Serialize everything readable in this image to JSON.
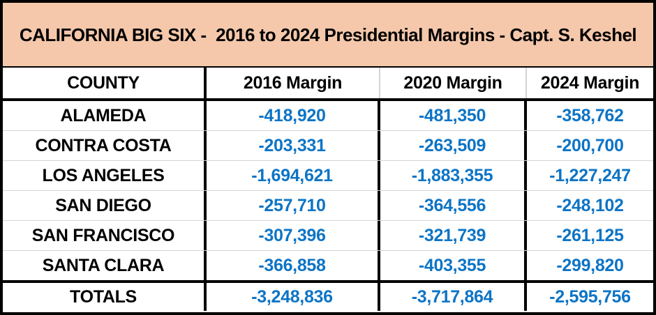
{
  "title": "CALIFORNIA BIG SIX -  2016 to 2024 Presidential Margins - Capt. S. Keshel",
  "colors": {
    "title_background": "#F5C8AB",
    "value_blue": "#0D74C5",
    "grid_gray": "#D4D4D4",
    "border_black": "#000000"
  },
  "table": {
    "headers": [
      "COUNTY",
      "2016 Margin",
      "2020 Margin",
      "2024 Margin"
    ],
    "rows": [
      {
        "county": "ALAMEDA",
        "m2016": "-418,920",
        "m2020": "-481,350",
        "m2024": "-358,762"
      },
      {
        "county": "CONTRA COSTA",
        "m2016": "-203,331",
        "m2020": "-263,509",
        "m2024": "-200,700"
      },
      {
        "county": "LOS ANGELES",
        "m2016": "-1,694,621",
        "m2020": "-1,883,355",
        "m2024": "-1,227,247"
      },
      {
        "county": "SAN DIEGO",
        "m2016": "-257,710",
        "m2020": "-364,556",
        "m2024": "-248,102"
      },
      {
        "county": "SAN FRANCISCO",
        "m2016": "-307,396",
        "m2020": "-321,739",
        "m2024": "-261,125"
      },
      {
        "county": "SANTA CLARA",
        "m2016": "-366,858",
        "m2020": "-403,355",
        "m2024": "-299,820"
      }
    ],
    "totals": {
      "label": "TOTALS",
      "m2016": "-3,248,836",
      "m2020": "-3,717,864",
      "m2024": "-2,595,756"
    }
  },
  "chart_data": {
    "type": "table",
    "title": "CALIFORNIA BIG SIX -  2016 to 2024 Presidential Margins - Capt. S. Keshel",
    "columns": [
      "COUNTY",
      "2016 Margin",
      "2020 Margin",
      "2024 Margin"
    ],
    "rows": [
      [
        "ALAMEDA",
        -418920,
        -481350,
        -358762
      ],
      [
        "CONTRA COSTA",
        -203331,
        -263509,
        -200700
      ],
      [
        "LOS ANGELES",
        -1694621,
        -1883355,
        -1227247
      ],
      [
        "SAN DIEGO",
        -257710,
        -364556,
        -248102
      ],
      [
        "SAN FRANCISCO",
        -307396,
        -321739,
        -261125
      ],
      [
        "SANTA CLARA",
        -366858,
        -403355,
        -299820
      ],
      [
        "TOTALS",
        -3248836,
        -3717864,
        -2595756
      ]
    ]
  }
}
